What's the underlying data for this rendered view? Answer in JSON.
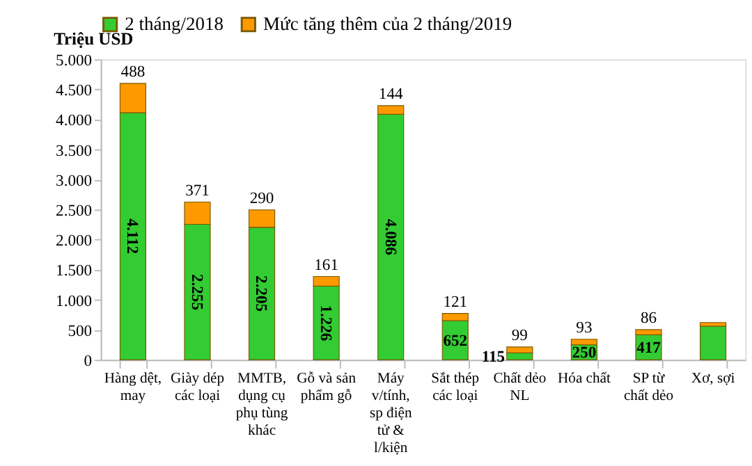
{
  "chart_data": {
    "type": "bar",
    "stacked": true,
    "ylabel": "Triệu USD",
    "categories": [
      "Hàng dệt, may",
      "Giày dép các loại",
      "MMTB, dụng cụ phụ tùng khác",
      "Gỗ và sản phẩm gỗ",
      "Máy v/tính, sp điện tử & l/kiện",
      "Sắt thép các loại",
      "Chất dẻo NL",
      "Hóa chất",
      "SP từ chất dẻo",
      "Xơ, sợi"
    ],
    "series": [
      {
        "name": "2 tháng/2018",
        "color": "#33cc33",
        "values": [
          4112,
          2255,
          2205,
          1226,
          4086,
          652,
          115,
          250,
          417,
          560
        ],
        "value_labels": [
          "4.112",
          "2.255",
          "2.205",
          "1.226",
          "4.086",
          "652",
          "115",
          "250",
          "417",
          null
        ]
      },
      {
        "name": "Mức tăng thêm của 2 tháng/2019",
        "color": "#ff9900",
        "values": [
          488,
          371,
          290,
          161,
          144,
          121,
          99,
          93,
          86,
          60
        ],
        "value_labels": [
          "488",
          "371",
          "290",
          "161",
          "144",
          "121",
          "99",
          "93",
          "86",
          null
        ]
      }
    ],
    "ylim": [
      0,
      5000
    ],
    "yticks": [
      0,
      {
        "value": 500,
        "label": "500"
      },
      {
        "value": 1000,
        "label": "1.000"
      },
      {
        "value": 1500,
        "label": "1.500"
      },
      {
        "value": 2000,
        "label": "2.000"
      },
      {
        "value": 2500,
        "label": "2.500"
      },
      {
        "value": 3000,
        "label": "3.000"
      },
      {
        "value": 3500,
        "label": "3.500"
      },
      {
        "value": 4000,
        "label": "4.000"
      },
      {
        "value": 4500,
        "label": "4.500"
      },
      {
        "value": 5000,
        "label": "5.000"
      }
    ],
    "legend": "top",
    "grid": false
  }
}
